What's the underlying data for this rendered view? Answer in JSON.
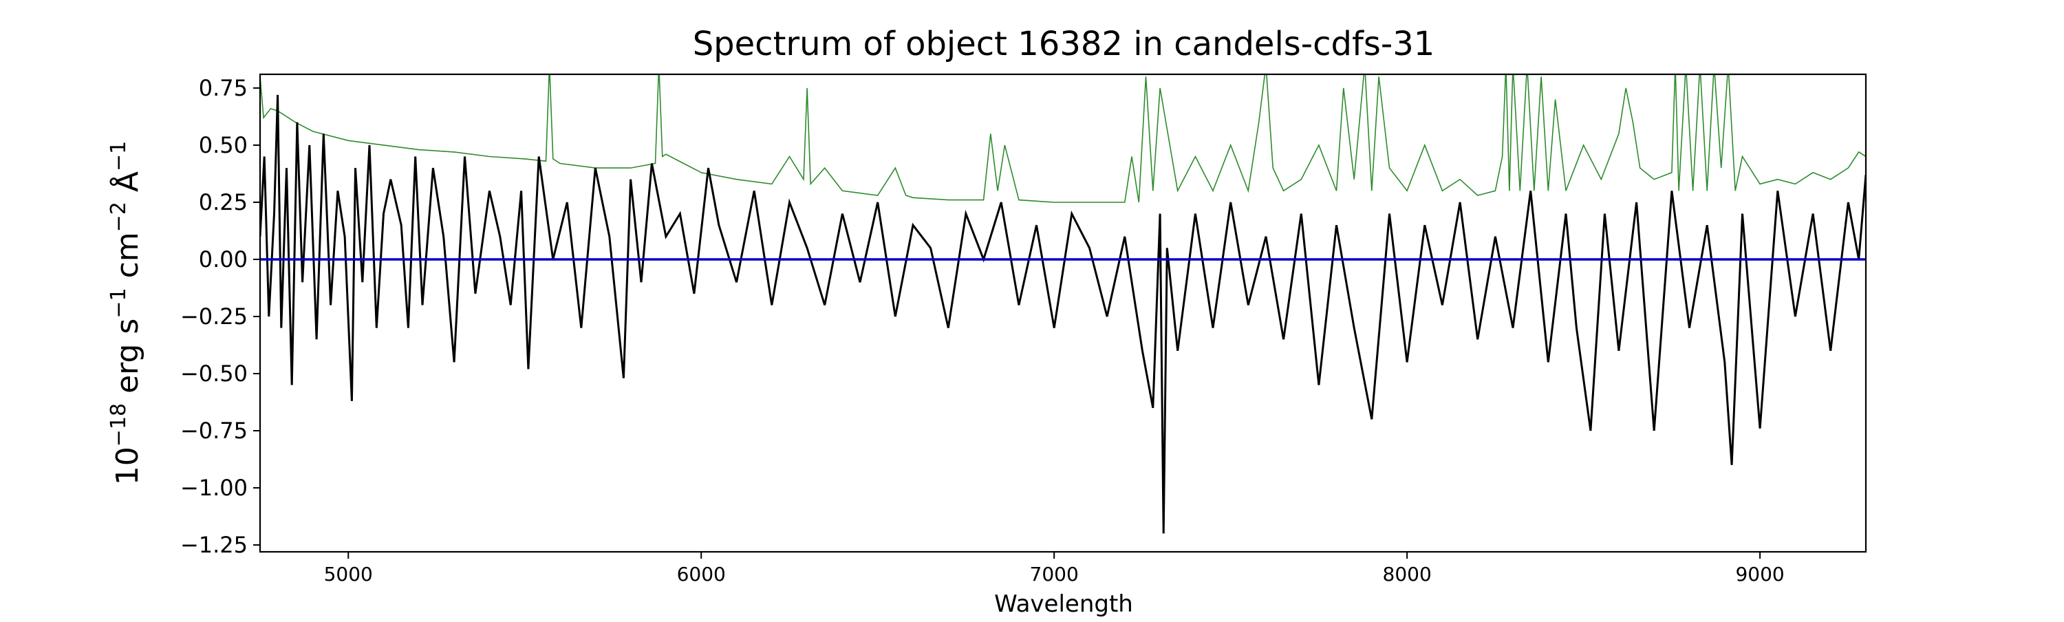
{
  "chart_data": {
    "type": "line",
    "title": "Spectrum of object 16382 in candels-cdfs-31",
    "xlabel": "Wavelength",
    "ylabel_parts": {
      "base": "10",
      "exp1": "−18",
      "erg": " erg s",
      "exp2": "−1",
      "cm": " cm",
      "exp3": "−2",
      "ang": " Å",
      "exp4": "−1"
    },
    "xlim": [
      4750,
      9300
    ],
    "ylim": [
      -1.28,
      0.81
    ],
    "xticks": [
      5000,
      6000,
      7000,
      8000,
      9000
    ],
    "xtick_labels": [
      "5000",
      "6000",
      "7000",
      "8000",
      "9000"
    ],
    "yticks": [
      0.75,
      0.5,
      0.25,
      0.0,
      -0.25,
      -0.5,
      -0.75,
      -1.0,
      -1.25
    ],
    "ytick_labels": [
      "0.75",
      "0.50",
      "0.25",
      "0.00",
      "−0.25",
      "−0.50",
      "−0.75",
      "−1.00",
      "−1.25"
    ],
    "grid": false,
    "zero_line": {
      "y": 0.0,
      "color": "#0000cc"
    },
    "series": [
      {
        "role": "flux",
        "color": "#000000",
        "x": [
          4750,
          4762,
          4775,
          4790,
          4800,
          4810,
          4825,
          4840,
          4855,
          4870,
          4890,
          4910,
          4930,
          4950,
          4970,
          4990,
          5010,
          5020,
          5040,
          5060,
          5080,
          5100,
          5120,
          5150,
          5170,
          5190,
          5210,
          5240,
          5270,
          5300,
          5330,
          5360,
          5400,
          5430,
          5460,
          5490,
          5510,
          5540,
          5580,
          5620,
          5660,
          5700,
          5740,
          5780,
          5800,
          5830,
          5860,
          5900,
          5940,
          5980,
          6020,
          6050,
          6100,
          6150,
          6200,
          6250,
          6300,
          6350,
          6400,
          6450,
          6500,
          6550,
          6600,
          6650,
          6700,
          6750,
          6800,
          6850,
          6900,
          6950,
          7000,
          7050,
          7100,
          7150,
          7200,
          7250,
          7280,
          7300,
          7310,
          7320,
          7350,
          7400,
          7450,
          7500,
          7550,
          7600,
          7650,
          7700,
          7750,
          7800,
          7850,
          7900,
          7950,
          8000,
          8050,
          8100,
          8150,
          8200,
          8250,
          8300,
          8350,
          8400,
          8450,
          8480,
          8520,
          8560,
          8600,
          8650,
          8700,
          8750,
          8800,
          8850,
          8900,
          8920,
          8950,
          9000,
          9050,
          9100,
          9150,
          9200,
          9250,
          9280,
          9300
        ],
        "y": [
          0.1,
          0.45,
          -0.25,
          0.2,
          0.72,
          -0.3,
          0.4,
          -0.55,
          0.6,
          -0.1,
          0.5,
          -0.35,
          0.55,
          -0.2,
          0.3,
          0.1,
          -0.62,
          0.4,
          -0.1,
          0.5,
          -0.3,
          0.2,
          0.35,
          0.15,
          -0.3,
          0.45,
          -0.2,
          0.4,
          0.1,
          -0.45,
          0.45,
          -0.15,
          0.3,
          0.1,
          -0.2,
          0.3,
          -0.48,
          0.45,
          0.0,
          0.25,
          -0.3,
          0.4,
          0.1,
          -0.52,
          0.35,
          -0.1,
          0.42,
          0.1,
          0.2,
          -0.15,
          0.4,
          0.15,
          -0.1,
          0.3,
          -0.2,
          0.25,
          0.05,
          -0.2,
          0.2,
          -0.1,
          0.25,
          -0.25,
          0.15,
          0.05,
          -0.3,
          0.2,
          0.0,
          0.25,
          -0.2,
          0.15,
          -0.3,
          0.2,
          0.05,
          -0.25,
          0.1,
          -0.4,
          -0.65,
          0.2,
          -1.2,
          0.05,
          -0.4,
          0.2,
          -0.3,
          0.25,
          -0.2,
          0.1,
          -0.35,
          0.2,
          -0.55,
          0.15,
          -0.3,
          -0.7,
          0.2,
          -0.45,
          0.15,
          -0.2,
          0.25,
          -0.35,
          0.1,
          -0.3,
          0.3,
          -0.45,
          0.2,
          -0.3,
          -0.75,
          0.2,
          -0.4,
          0.25,
          -0.75,
          0.3,
          -0.3,
          0.15,
          -0.45,
          -0.9,
          0.2,
          -0.74,
          0.3,
          -0.25,
          0.2,
          -0.4,
          0.25,
          0.0,
          0.37
        ]
      },
      {
        "role": "error",
        "color": "#2e8b2e",
        "x": [
          4750,
          4760,
          4780,
          4800,
          4850,
          4900,
          5000,
          5100,
          5200,
          5300,
          5400,
          5500,
          5560,
          5570,
          5580,
          5600,
          5700,
          5800,
          5870,
          5880,
          5890,
          5900,
          5950,
          6000,
          6100,
          6200,
          6250,
          6290,
          6300,
          6310,
          6350,
          6400,
          6500,
          6550,
          6580,
          6600,
          6700,
          6800,
          6820,
          6840,
          6860,
          6900,
          7000,
          7100,
          7200,
          7220,
          7240,
          7260,
          7280,
          7300,
          7350,
          7400,
          7450,
          7500,
          7550,
          7580,
          7600,
          7620,
          7650,
          7700,
          7750,
          7800,
          7820,
          7850,
          7880,
          7900,
          7920,
          7950,
          8000,
          8050,
          8100,
          8150,
          8200,
          8250,
          8270,
          8280,
          8290,
          8300,
          8320,
          8340,
          8360,
          8380,
          8400,
          8420,
          8450,
          8500,
          8550,
          8600,
          8620,
          8640,
          8660,
          8700,
          8750,
          8760,
          8770,
          8790,
          8810,
          8830,
          8850,
          8870,
          8890,
          8910,
          8930,
          8950,
          9000,
          9050,
          9100,
          9150,
          9200,
          9250,
          9280,
          9300
        ],
        "y": [
          0.8,
          0.62,
          0.66,
          0.65,
          0.6,
          0.56,
          0.52,
          0.5,
          0.48,
          0.47,
          0.45,
          0.44,
          0.43,
          0.85,
          0.44,
          0.42,
          0.4,
          0.4,
          0.42,
          0.85,
          0.45,
          0.46,
          0.42,
          0.38,
          0.35,
          0.33,
          0.45,
          0.35,
          0.75,
          0.33,
          0.4,
          0.3,
          0.28,
          0.4,
          0.28,
          0.27,
          0.26,
          0.26,
          0.55,
          0.3,
          0.5,
          0.26,
          0.25,
          0.25,
          0.25,
          0.45,
          0.25,
          0.8,
          0.3,
          0.75,
          0.3,
          0.45,
          0.3,
          0.5,
          0.3,
          0.6,
          0.85,
          0.4,
          0.3,
          0.35,
          0.5,
          0.3,
          0.75,
          0.35,
          0.85,
          0.3,
          0.8,
          0.4,
          0.3,
          0.5,
          0.3,
          0.35,
          0.28,
          0.3,
          0.45,
          0.85,
          0.3,
          0.85,
          0.3,
          0.85,
          0.3,
          0.8,
          0.3,
          0.7,
          0.3,
          0.5,
          0.35,
          0.55,
          0.75,
          0.6,
          0.4,
          0.35,
          0.38,
          0.85,
          0.3,
          0.85,
          0.3,
          0.85,
          0.3,
          0.85,
          0.4,
          0.85,
          0.3,
          0.45,
          0.33,
          0.35,
          0.33,
          0.38,
          0.35,
          0.4,
          0.47,
          0.45
        ]
      }
    ]
  }
}
